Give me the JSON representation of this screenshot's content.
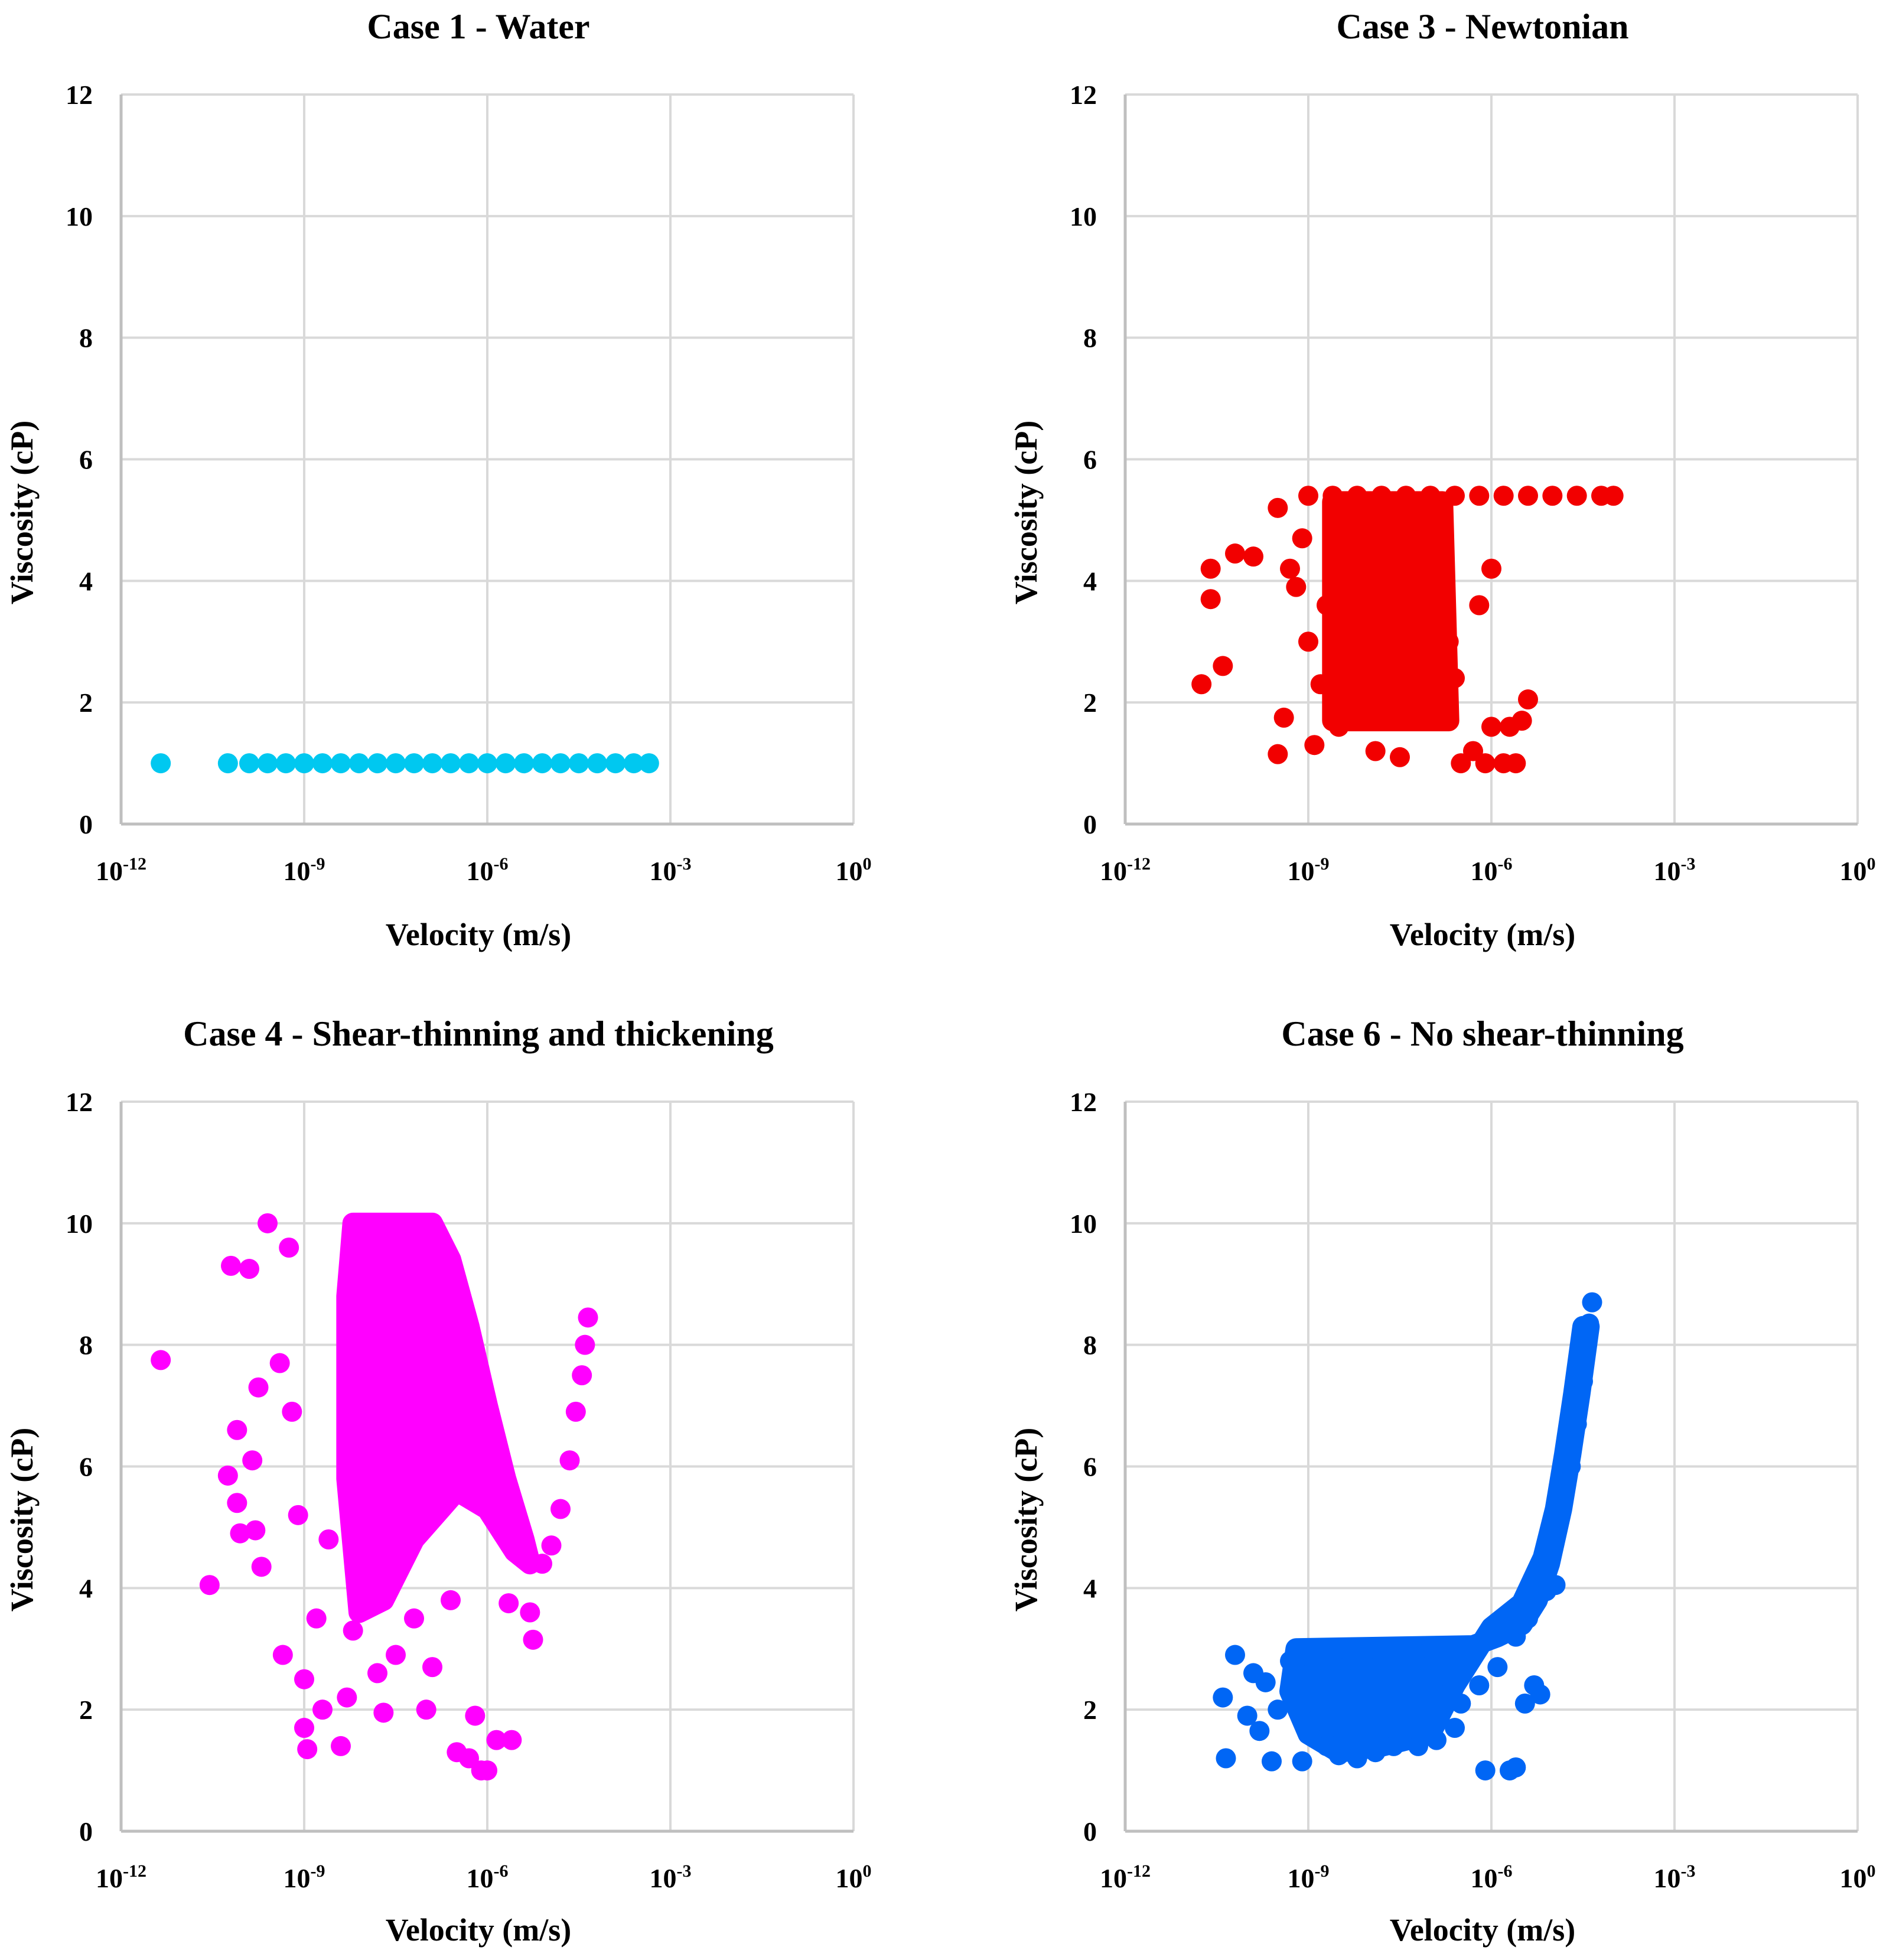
{
  "chart_data": [
    {
      "type": "scatter",
      "title": "Case 1 - Water",
      "xlabel": "Velocity (m/s)",
      "ylabel": "Viscosity (cP)",
      "xscale": "log",
      "xlim": [
        -12,
        0
      ],
      "ylim": [
        0,
        12
      ],
      "grid": true,
      "color": "#00C8F0",
      "x_ticks": [
        {
          "base": "10",
          "exp": "-12"
        },
        {
          "base": "10",
          "exp": "-9"
        },
        {
          "base": "10",
          "exp": "-6"
        },
        {
          "base": "10",
          "exp": "-3"
        },
        {
          "base": "10",
          "exp": "0"
        }
      ],
      "y_ticks": [
        "0",
        "2",
        "4",
        "6",
        "8",
        "10",
        "12"
      ],
      "series": [
        {
          "name": "Case 1",
          "points": [
            [
              -11.35,
              1.0
            ],
            [
              -10.25,
              1.0
            ],
            [
              -9.9,
              1.0
            ],
            [
              -9.6,
              1.0
            ],
            [
              -9.3,
              1.0
            ],
            [
              -9.0,
              1.0
            ],
            [
              -8.7,
              1.0
            ],
            [
              -8.4,
              1.0
            ],
            [
              -8.1,
              1.0
            ],
            [
              -7.8,
              1.0
            ],
            [
              -7.5,
              1.0
            ],
            [
              -7.2,
              1.0
            ],
            [
              -6.9,
              1.0
            ],
            [
              -6.6,
              1.0
            ],
            [
              -6.3,
              1.0
            ],
            [
              -6.0,
              1.0
            ],
            [
              -5.7,
              1.0
            ],
            [
              -5.4,
              1.0
            ],
            [
              -5.1,
              1.0
            ],
            [
              -4.8,
              1.0
            ],
            [
              -4.5,
              1.0
            ],
            [
              -4.2,
              1.0
            ],
            [
              -3.9,
              1.0
            ],
            [
              -3.6,
              1.0
            ],
            [
              -3.35,
              1.0
            ]
          ]
        }
      ]
    },
    {
      "type": "scatter",
      "title": "Case 3 - Newtonian",
      "xlabel": "Velocity (m/s)",
      "ylabel": "Viscosity (cP)",
      "xscale": "log",
      "xlim": [
        -12,
        0
      ],
      "ylim": [
        0,
        12
      ],
      "grid": true,
      "color": "#F20000",
      "x_ticks": [
        {
          "base": "10",
          "exp": "-12"
        },
        {
          "base": "10",
          "exp": "-9"
        },
        {
          "base": "10",
          "exp": "-6"
        },
        {
          "base": "10",
          "exp": "-3"
        },
        {
          "base": "10",
          "exp": "0"
        }
      ],
      "y_ticks": [
        "0",
        "2",
        "4",
        "6",
        "8",
        "10",
        "12"
      ],
      "series": [
        {
          "name": "Case 3",
          "points": [
            [
              -10.75,
              2.3
            ],
            [
              -10.6,
              4.2
            ],
            [
              -10.6,
              3.7
            ],
            [
              -10.4,
              2.6
            ],
            [
              -10.2,
              4.45
            ],
            [
              -9.9,
              4.4
            ],
            [
              -9.5,
              5.2
            ],
            [
              -9.3,
              4.2
            ],
            [
              -9.5,
              1.15
            ],
            [
              -9.4,
              1.75
            ],
            [
              -9.2,
              3.9
            ],
            [
              -9.1,
              4.7
            ],
            [
              -9.0,
              3.0
            ],
            [
              -8.9,
              1.3
            ],
            [
              -8.8,
              2.3
            ],
            [
              -8.7,
              3.6
            ],
            [
              -8.5,
              1.6
            ],
            [
              -8.3,
              2.6
            ],
            [
              -8.1,
              4.0
            ],
            [
              -7.9,
              1.2
            ],
            [
              -7.7,
              3.2
            ],
            [
              -7.5,
              1.1
            ],
            [
              -7.3,
              2.5
            ],
            [
              -7.0,
              1.9
            ],
            [
              -6.7,
              3.0
            ],
            [
              -6.5,
              1.0
            ],
            [
              -6.3,
              1.2
            ],
            [
              -6.1,
              1.0
            ],
            [
              -5.8,
              1.0
            ],
            [
              -5.6,
              1.0
            ],
            [
              -6.0,
              1.6
            ],
            [
              -5.7,
              1.6
            ],
            [
              -5.5,
              1.7
            ],
            [
              -5.4,
              2.05
            ],
            [
              -6.2,
              3.6
            ],
            [
              -6.0,
              4.2
            ],
            [
              -7.2,
              4.6
            ],
            [
              -7.0,
              3.8
            ],
            [
              -6.6,
              2.4
            ],
            [
              -9.0,
              5.4
            ],
            [
              -8.6,
              5.4
            ],
            [
              -8.2,
              5.4
            ],
            [
              -7.8,
              5.4
            ],
            [
              -7.4,
              5.4
            ],
            [
              -7.0,
              5.4
            ],
            [
              -6.6,
              5.4
            ],
            [
              -6.2,
              5.4
            ],
            [
              -5.8,
              5.4
            ],
            [
              -5.4,
              5.4
            ],
            [
              -5.0,
              5.4
            ],
            [
              -4.6,
              5.4
            ],
            [
              -4.2,
              5.4
            ],
            [
              -4.0,
              5.4
            ]
          ]
        }
      ],
      "dense_regions": [
        {
          "points": [
            [
              -8.6,
              5.3
            ],
            [
              -6.8,
              5.3
            ],
            [
              -6.7,
              1.7
            ],
            [
              -8.6,
              1.7
            ]
          ]
        }
      ]
    },
    {
      "type": "scatter",
      "title": "Case 4 - Shear-thinning and thickening",
      "xlabel": "Velocity (m/s)",
      "ylabel": "Viscosity (cP)",
      "xscale": "log",
      "xlim": [
        -12,
        0
      ],
      "ylim": [
        0,
        12
      ],
      "grid": true,
      "color": "#FF00FF",
      "x_ticks": [
        {
          "base": "10",
          "exp": "-12"
        },
        {
          "base": "10",
          "exp": "-9"
        },
        {
          "base": "10",
          "exp": "-6"
        },
        {
          "base": "10",
          "exp": "-3"
        },
        {
          "base": "10",
          "exp": "0"
        }
      ],
      "y_ticks": [
        "0",
        "2",
        "4",
        "6",
        "8",
        "10",
        "12"
      ],
      "series": [
        {
          "name": "Case 4",
          "points": [
            [
              -11.35,
              7.75
            ],
            [
              -10.55,
              4.05
            ],
            [
              -10.25,
              5.85
            ],
            [
              -10.2,
              9.3
            ],
            [
              -10.1,
              6.6
            ],
            [
              -10.1,
              5.4
            ],
            [
              -10.05,
              4.9
            ],
            [
              -9.9,
              9.25
            ],
            [
              -9.85,
              6.1
            ],
            [
              -9.8,
              4.95
            ],
            [
              -9.7,
              4.35
            ],
            [
              -9.75,
              7.3
            ],
            [
              -9.6,
              10.0
            ],
            [
              -9.4,
              7.7
            ],
            [
              -9.35,
              2.9
            ],
            [
              -9.25,
              9.6
            ],
            [
              -9.2,
              6.9
            ],
            [
              -9.1,
              5.2
            ],
            [
              -9.0,
              1.7
            ],
            [
              -9.0,
              2.5
            ],
            [
              -8.95,
              1.35
            ],
            [
              -8.8,
              3.5
            ],
            [
              -8.7,
              2.0
            ],
            [
              -8.6,
              4.8
            ],
            [
              -8.4,
              1.4
            ],
            [
              -8.3,
              2.2
            ],
            [
              -8.2,
              3.3
            ],
            [
              -8.0,
              4.2
            ],
            [
              -7.8,
              2.6
            ],
            [
              -7.7,
              1.95
            ],
            [
              -7.5,
              2.9
            ],
            [
              -7.2,
              3.5
            ],
            [
              -7.0,
              2.0
            ],
            [
              -6.9,
              2.7
            ],
            [
              -6.6,
              3.8
            ],
            [
              -6.5,
              1.3
            ],
            [
              -6.3,
              1.2
            ],
            [
              -6.2,
              1.9
            ],
            [
              -6.1,
              1.0
            ],
            [
              -6.0,
              1.0
            ],
            [
              -5.85,
              1.5
            ],
            [
              -5.6,
              1.5
            ],
            [
              -5.65,
              3.75
            ],
            [
              -5.3,
              3.6
            ],
            [
              -5.25,
              3.15
            ],
            [
              -5.3,
              4.4
            ],
            [
              -5.1,
              4.4
            ],
            [
              -4.95,
              4.7
            ],
            [
              -4.8,
              5.3
            ],
            [
              -4.65,
              6.1
            ],
            [
              -4.55,
              6.9
            ],
            [
              -4.45,
              7.5
            ],
            [
              -4.4,
              8.0
            ],
            [
              -4.35,
              8.45
            ]
          ]
        }
      ],
      "dense_regions": [
        {
          "points": [
            [
              -8.2,
              10.0
            ],
            [
              -6.9,
              10.0
            ],
            [
              -6.6,
              9.4
            ],
            [
              -6.3,
              8.3
            ],
            [
              -6.0,
              7.0
            ],
            [
              -5.7,
              5.8
            ],
            [
              -5.4,
              4.8
            ],
            [
              -5.3,
              4.4
            ],
            [
              -5.55,
              4.6
            ],
            [
              -6.0,
              5.3
            ],
            [
              -6.5,
              5.6
            ],
            [
              -7.2,
              4.8
            ],
            [
              -7.7,
              3.8
            ],
            [
              -8.1,
              3.6
            ],
            [
              -8.3,
              5.8
            ],
            [
              -8.3,
              8.8
            ]
          ]
        }
      ]
    },
    {
      "type": "scatter",
      "title": "Case 6 - No shear-thinning",
      "xlabel": "Velocity (m/s)",
      "ylabel": "Viscosity (cP)",
      "xscale": "log",
      "xlim": [
        -12,
        0
      ],
      "ylim": [
        0,
        12
      ],
      "grid": true,
      "color": "#0066F5",
      "x_ticks": [
        {
          "base": "10",
          "exp": "-12"
        },
        {
          "base": "10",
          "exp": "-9"
        },
        {
          "base": "10",
          "exp": "-6"
        },
        {
          "base": "10",
          "exp": "-3"
        },
        {
          "base": "10",
          "exp": "0"
        }
      ],
      "y_ticks": [
        "0",
        "2",
        "4",
        "6",
        "8",
        "10",
        "12"
      ],
      "series": [
        {
          "name": "Case 6",
          "points": [
            [
              -10.4,
              2.2
            ],
            [
              -10.35,
              1.2
            ],
            [
              -10.2,
              2.9
            ],
            [
              -10.0,
              1.9
            ],
            [
              -9.9,
              2.6
            ],
            [
              -9.8,
              1.65
            ],
            [
              -9.7,
              2.45
            ],
            [
              -9.6,
              1.15
            ],
            [
              -9.5,
              2.0
            ],
            [
              -9.3,
              2.8
            ],
            [
              -9.1,
              1.15
            ],
            [
              -8.9,
              1.8
            ],
            [
              -8.7,
              1.4
            ],
            [
              -8.5,
              1.25
            ],
            [
              -8.2,
              1.2
            ],
            [
              -7.9,
              1.3
            ],
            [
              -7.6,
              1.4
            ],
            [
              -7.2,
              1.4
            ],
            [
              -6.9,
              1.5
            ],
            [
              -6.6,
              1.7
            ],
            [
              -6.1,
              1.0
            ],
            [
              -5.7,
              1.0
            ],
            [
              -5.6,
              1.05
            ],
            [
              -5.45,
              2.1
            ],
            [
              -5.3,
              2.4
            ],
            [
              -5.2,
              2.25
            ],
            [
              -5.1,
              3.95
            ],
            [
              -4.95,
              4.05
            ],
            [
              -6.5,
              2.1
            ],
            [
              -6.2,
              2.4
            ],
            [
              -5.9,
              2.7
            ],
            [
              -5.6,
              3.2
            ],
            [
              -5.4,
              3.5
            ],
            [
              -5.2,
              4.0
            ],
            [
              -5.0,
              4.6
            ],
            [
              -4.85,
              5.3
            ],
            [
              -4.7,
              6.0
            ],
            [
              -4.6,
              6.7
            ],
            [
              -4.5,
              7.4
            ],
            [
              -4.45,
              7.9
            ],
            [
              -4.4,
              8.35
            ],
            [
              -4.35,
              8.7
            ],
            [
              -9.0,
              3.0
            ],
            [
              -8.5,
              3.0
            ],
            [
              -8.0,
              3.0
            ],
            [
              -7.5,
              3.0
            ],
            [
              -7.0,
              3.0
            ],
            [
              -6.5,
              3.05
            ]
          ]
        }
      ],
      "dense_regions": [
        {
          "points": [
            [
              -9.2,
              3.0
            ],
            [
              -6.3,
              3.05
            ],
            [
              -5.9,
              3.2
            ],
            [
              -5.5,
              3.4
            ],
            [
              -5.25,
              3.8
            ],
            [
              -5.05,
              4.4
            ],
            [
              -4.85,
              5.3
            ],
            [
              -4.7,
              6.2
            ],
            [
              -4.55,
              7.2
            ],
            [
              -4.4,
              8.3
            ],
            [
              -4.5,
              8.3
            ],
            [
              -4.65,
              7.2
            ],
            [
              -4.8,
              6.2
            ],
            [
              -4.95,
              5.3
            ],
            [
              -5.15,
              4.5
            ],
            [
              -5.5,
              3.75
            ],
            [
              -6.0,
              3.35
            ],
            [
              -6.6,
              2.4
            ],
            [
              -7.0,
              1.6
            ],
            [
              -7.8,
              1.4
            ],
            [
              -8.5,
              1.3
            ],
            [
              -9.0,
              1.6
            ],
            [
              -9.3,
              2.3
            ]
          ]
        }
      ]
    }
  ]
}
